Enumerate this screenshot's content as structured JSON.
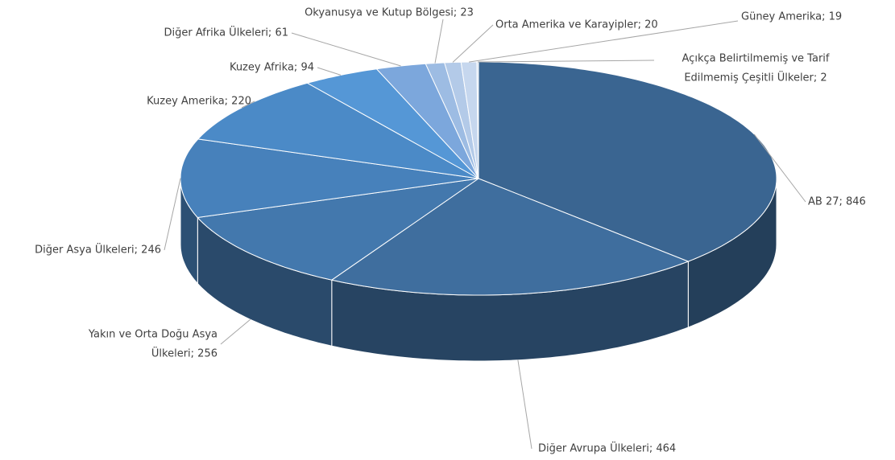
{
  "chart_data": {
    "type": "pie",
    "three_d": true,
    "values": [
      846,
      464,
      256,
      246,
      220,
      94,
      61,
      23,
      20,
      19,
      2
    ],
    "value_labels": [
      [
        "AB 27; 846"
      ],
      [
        "Diğer Avrupa Ülkeleri; 464"
      ],
      [
        "Yakın ve Orta Doğu Asya",
        "Ülkeleri; 256"
      ],
      [
        "Diğer Asya Ülkeleri; 246"
      ],
      [
        "Kuzey Amerika; 220"
      ],
      [
        "Kuzey Afrika; 94"
      ],
      [
        "Diğer Afrika Ülkeleri; 61"
      ],
      [
        "Okyanusya ve Kutup Bölgesi; 23"
      ],
      [
        "Orta Amerika ve Karayipler; 20"
      ],
      [
        "Güney Amerika; 19"
      ],
      [
        "Açıkça Belirtilmemiş ve Tarif",
        "Edilmemiş Çeşitli Ülkeler; 2"
      ]
    ],
    "colors": [
      "#3a6591",
      "#3f6e9e",
      "#4378ad",
      "#4781bb",
      "#4b8ac7",
      "#5597d6",
      "#7ca7dc",
      "#9dbce3",
      "#b3cae8",
      "#c6d7ee",
      "#d6e2f2"
    ]
  }
}
